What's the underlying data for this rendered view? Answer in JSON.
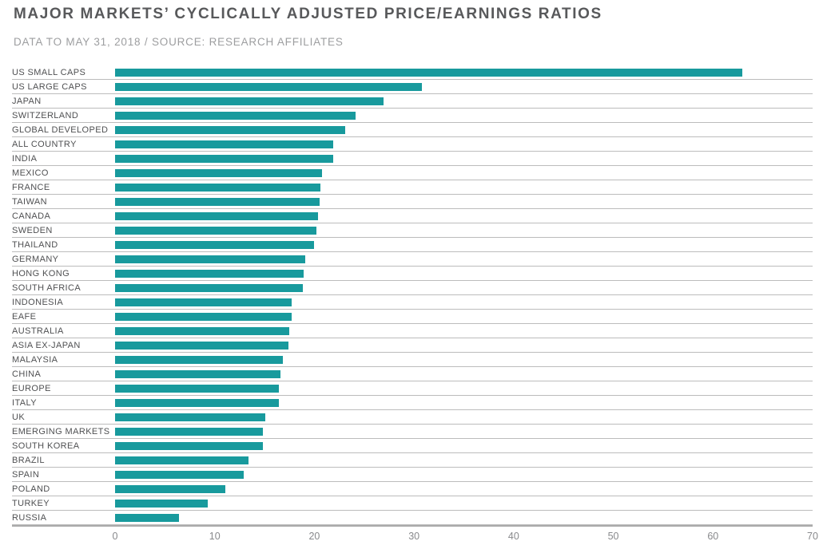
{
  "header": {
    "title": "MAJOR MARKETS’ CYCLICALLY ADJUSTED PRICE/EARNINGS RATIOS",
    "subtitle": "DATA TO MAY 31, 2018 / SOURCE: RESEARCH AFFILIATES"
  },
  "colors": {
    "bar": "#189a9d",
    "row_separator": "#bcbcbc",
    "axis_line": "#ababab",
    "label_text": "#4f5052",
    "tick_text": "#88898c",
    "title_text": "#58595b",
    "subtitle_text": "#9d9ea0",
    "background": "#ffffff"
  },
  "chart_data": {
    "type": "bar",
    "orientation": "horizontal",
    "title": "MAJOR MARKETS’ CYCLICALLY ADJUSTED PRICE/EARNINGS RATIOS",
    "subtitle": "DATA TO MAY 31, 2018 / SOURCE: RESEARCH AFFILIATES",
    "xlabel": "",
    "ylabel": "",
    "xlim": [
      0,
      70
    ],
    "xticks": [
      0,
      10,
      20,
      30,
      40,
      50,
      60,
      70
    ],
    "grid": false,
    "legend": false,
    "sorted": "descending",
    "categories": [
      "US SMALL CAPS",
      "US LARGE CAPS",
      "JAPAN",
      "SWITZERLAND",
      "GLOBAL DEVELOPED",
      "ALL COUNTRY",
      "INDIA",
      "MEXICO",
      "FRANCE",
      "TAIWAN",
      "CANADA",
      "SWEDEN",
      "THAILAND",
      "GERMANY",
      "HONG KONG",
      "SOUTH AFRICA",
      "INDONESIA",
      "EAFE",
      "AUSTRALIA",
      "ASIA EX-JAPAN",
      "MALAYSIA",
      "CHINA",
      "EUROPE",
      "ITALY",
      "UK",
      "EMERGING MARKETS",
      "SOUTH KOREA",
      "BRAZIL",
      "SPAIN",
      "POLAND",
      "TURKEY",
      "RUSSIA"
    ],
    "values": [
      62.9,
      30.8,
      26.9,
      24.1,
      23.1,
      21.9,
      21.9,
      20.8,
      20.6,
      20.5,
      20.4,
      20.2,
      20.0,
      19.1,
      18.9,
      18.8,
      17.7,
      17.7,
      17.5,
      17.4,
      16.8,
      16.6,
      16.4,
      16.4,
      15.1,
      14.8,
      14.8,
      13.4,
      12.9,
      11.1,
      9.3,
      6.4
    ]
  }
}
